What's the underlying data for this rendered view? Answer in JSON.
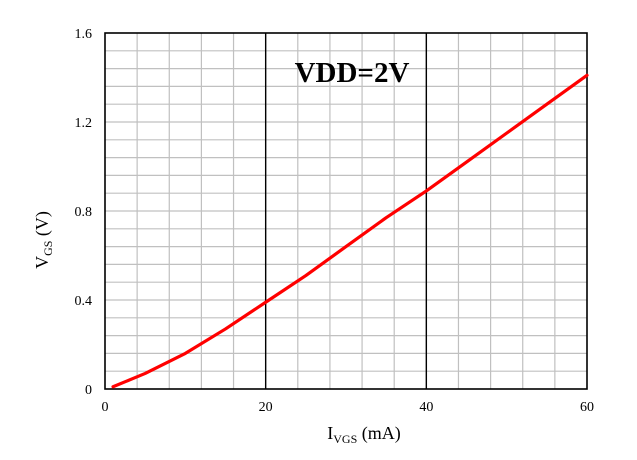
{
  "chart_data": {
    "type": "line",
    "xlabel": {
      "main": "I",
      "sub": "VGS",
      "unit": " (mA)"
    },
    "ylabel": {
      "main": "V",
      "sub": "GS",
      "unit": " (V)"
    },
    "annotation": "VDD=2V",
    "xlim": [
      0,
      60
    ],
    "ylim": [
      0,
      1.6
    ],
    "x_ticks": [
      0,
      20,
      40,
      60
    ],
    "x_tick_labels": [
      "0",
      "20",
      "40",
      "60"
    ],
    "y_ticks": [
      0,
      0.4,
      0.8,
      1.2,
      1.6
    ],
    "y_tick_labels": [
      "0",
      "0.4",
      "0.8",
      "1.2",
      "1.6"
    ],
    "grid": true,
    "legend": "none",
    "colors": {
      "series": "#ff0000",
      "minor_grid": "#c0c0c0",
      "major_grid": "#000000"
    },
    "series": [
      {
        "x": [
          1,
          5,
          10,
          15,
          20,
          25,
          30,
          35,
          40,
          45,
          50,
          55,
          60
        ],
        "y": [
          0.01,
          0.07,
          0.16,
          0.27,
          0.39,
          0.51,
          0.64,
          0.77,
          0.89,
          1.02,
          1.15,
          1.28,
          1.41
        ]
      }
    ]
  }
}
